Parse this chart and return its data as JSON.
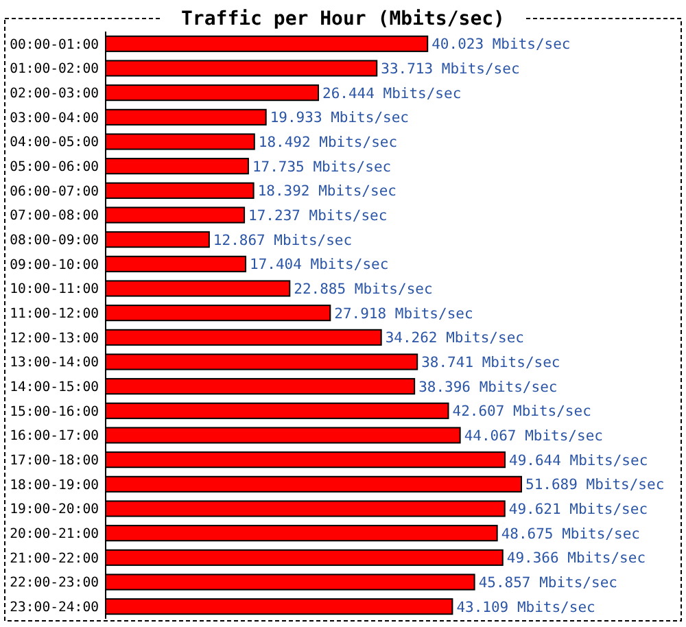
{
  "chart_data": {
    "type": "bar",
    "orientation": "horizontal",
    "title": "Traffic per Hour (Mbits/sec)",
    "categories": [
      "00:00-01:00",
      "01:00-02:00",
      "02:00-03:00",
      "03:00-04:00",
      "04:00-05:00",
      "05:00-06:00",
      "06:00-07:00",
      "07:00-08:00",
      "08:00-09:00",
      "09:00-10:00",
      "10:00-11:00",
      "11:00-12:00",
      "12:00-13:00",
      "13:00-14:00",
      "14:00-15:00",
      "15:00-16:00",
      "16:00-17:00",
      "17:00-18:00",
      "18:00-19:00",
      "19:00-20:00",
      "20:00-21:00",
      "21:00-22:00",
      "22:00-23:00",
      "23:00-24:00"
    ],
    "values": [
      40.023,
      33.713,
      26.444,
      19.933,
      18.492,
      17.735,
      18.392,
      17.237,
      12.867,
      17.404,
      22.885,
      27.918,
      34.262,
      38.741,
      38.396,
      42.607,
      44.067,
      49.644,
      51.689,
      49.621,
      48.675,
      49.366,
      45.857,
      43.109
    ],
    "value_labels": [
      "40.023 Mbits/sec",
      "33.713 Mbits/sec",
      "26.444 Mbits/sec",
      "19.933 Mbits/sec",
      "18.492 Mbits/sec",
      "17.735 Mbits/sec",
      "18.392 Mbits/sec",
      "17.237 Mbits/sec",
      "12.867 Mbits/sec",
      "17.404 Mbits/sec",
      "22.885 Mbits/sec",
      "27.918 Mbits/sec",
      "34.262 Mbits/sec",
      "38.741 Mbits/sec",
      "38.396 Mbits/sec",
      "42.607 Mbits/sec",
      "44.067 Mbits/sec",
      "49.644 Mbits/sec",
      "51.689 Mbits/sec",
      "49.621 Mbits/sec",
      "48.675 Mbits/sec",
      "49.366 Mbits/sec",
      "45.857 Mbits/sec",
      "43.109 Mbits/sec"
    ],
    "color": "#ff0000"
  }
}
